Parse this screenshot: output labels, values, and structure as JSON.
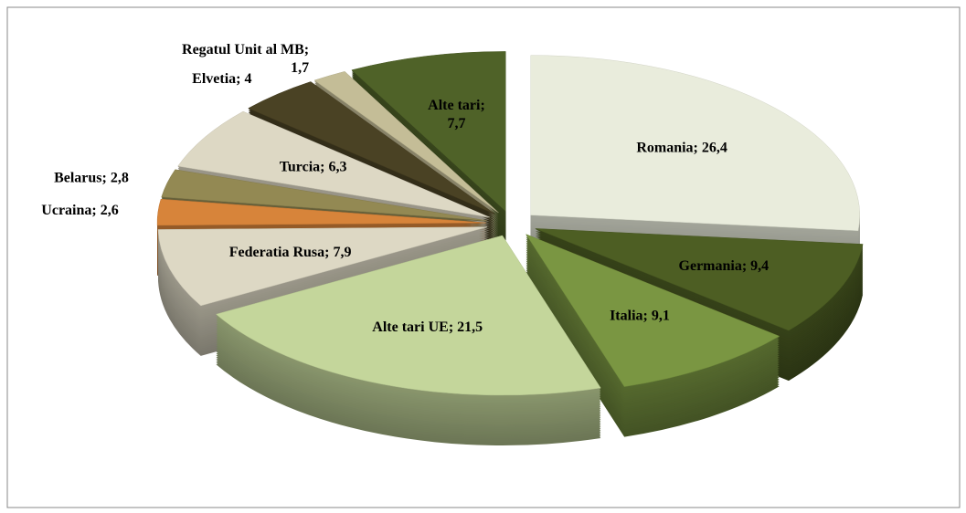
{
  "chart_data": {
    "type": "pie3d",
    "values": [
      26.4,
      9.4,
      9.1,
      21.5,
      7.9,
      2.6,
      2.8,
      6.3,
      4,
      1.7,
      7.7
    ],
    "value_labels": [
      "Romania; 26,4",
      "Germania; 9,4",
      "Italia; 9,1",
      "Alte tari UE; 21,5",
      "Federatia Rusa; 7,9",
      "Ucraina; 2,6",
      "Belarus; 2,8",
      "Turcia; 6,3",
      "Elvetia; 4",
      "Regatul Unit al MB;\n1,7",
      "Alte tari;\n7,7"
    ],
    "colors": [
      "#e9ecdc",
      "#4d5e23",
      "#7a9642",
      "#c4d69b",
      "#ddd8c4",
      "#d7843a",
      "#938953",
      "#ddd8c4",
      "#4a4224",
      "#c4bd97",
      "#4f6228"
    ]
  }
}
